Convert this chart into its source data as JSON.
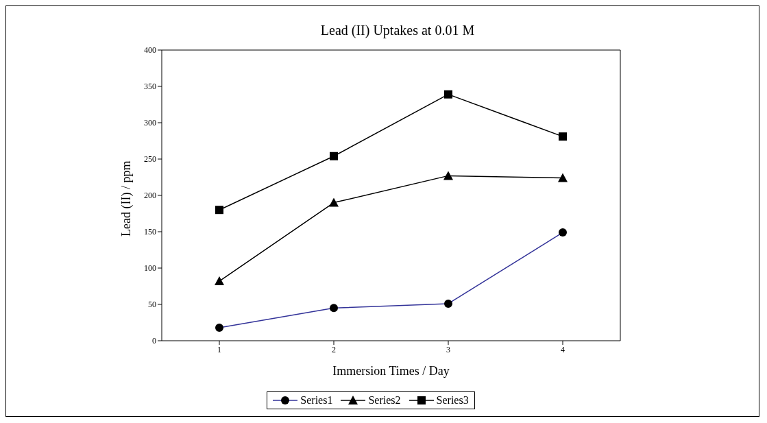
{
  "chart_data": {
    "type": "line",
    "title": "Lead (II) Uptakes at 0.01 M",
    "xlabel": "Immersion Times / Day",
    "ylabel": "Lead (II) / ppm",
    "categories": [
      "1",
      "2",
      "3",
      "4"
    ],
    "series": [
      {
        "name": "Series1",
        "color": "#333399",
        "marker": "circle",
        "values": [
          18,
          45,
          51,
          149
        ]
      },
      {
        "name": "Series2",
        "color": "#000000",
        "marker": "triangle",
        "values": [
          82,
          190,
          227,
          224
        ]
      },
      {
        "name": "Series3",
        "color": "#000000",
        "marker": "square",
        "values": [
          180,
          254,
          339,
          281
        ]
      }
    ],
    "ylim": [
      0,
      400
    ],
    "yticks": [
      0,
      50,
      100,
      150,
      200,
      250,
      300,
      350,
      400
    ],
    "grid": false,
    "legend": "bottom"
  }
}
